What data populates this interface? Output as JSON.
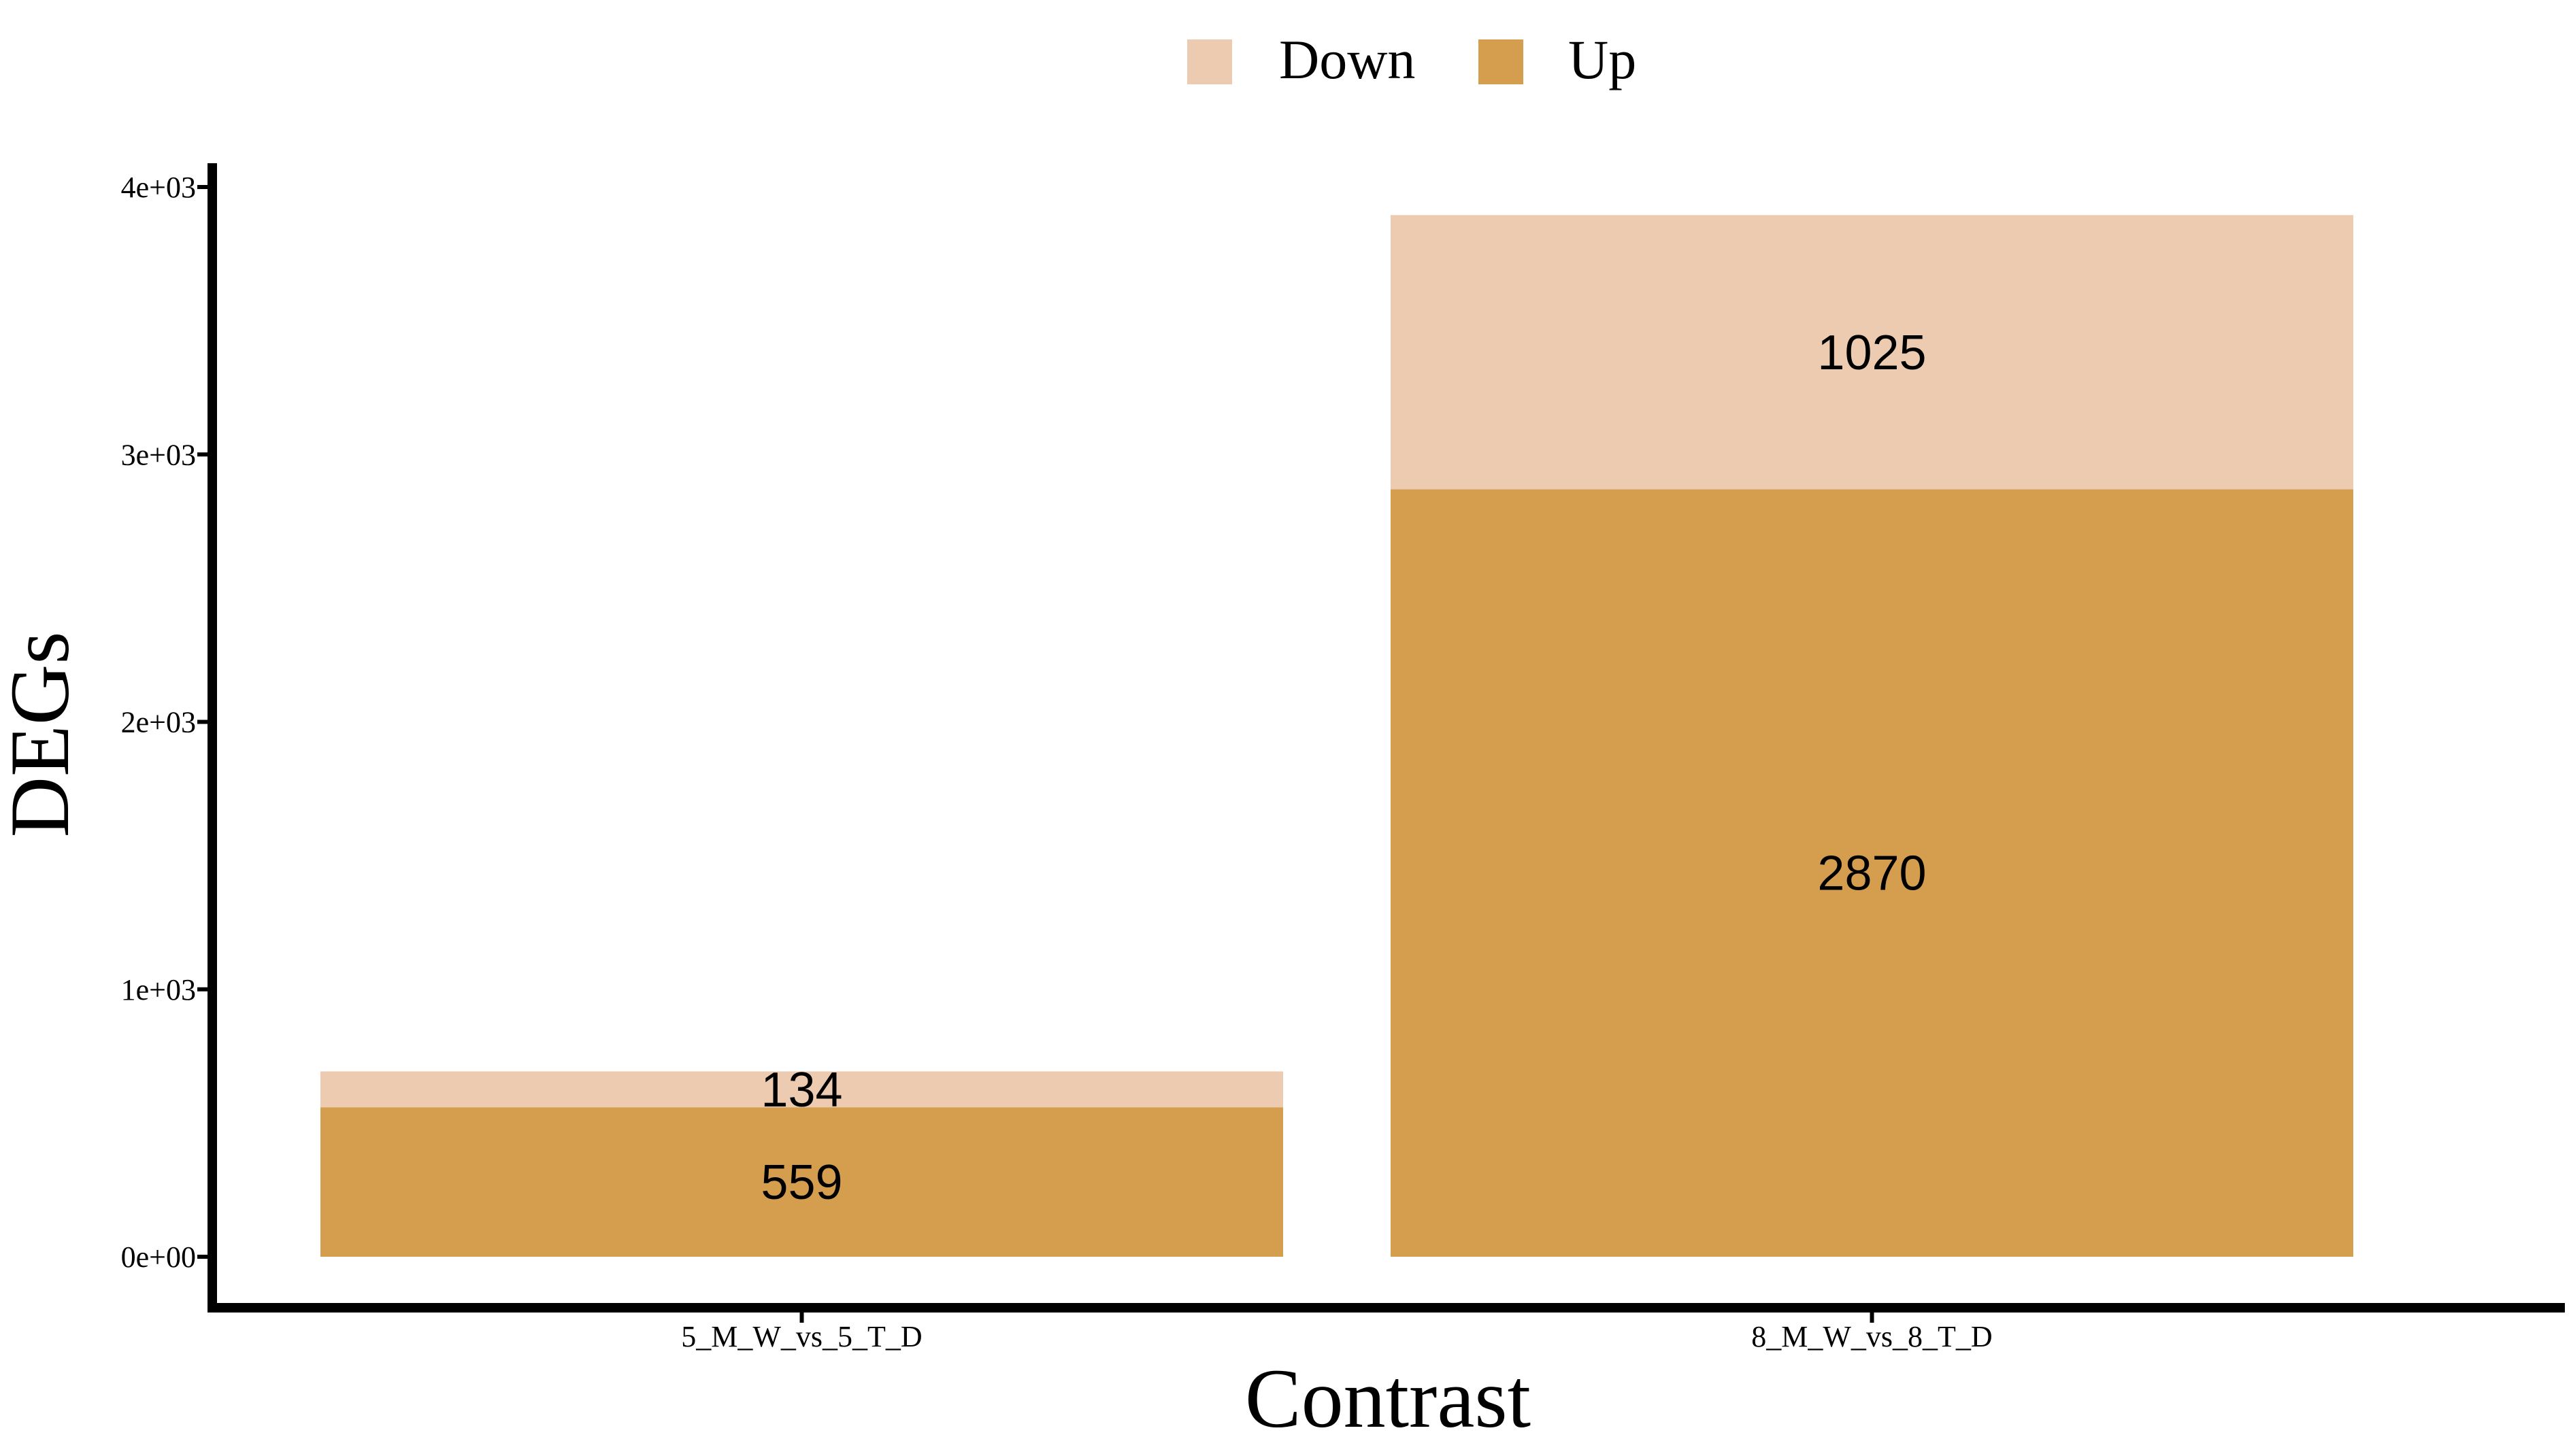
{
  "chart_data": {
    "type": "bar",
    "stacked": true,
    "categories": [
      "5_M_W_vs_5_T_D",
      "8_M_W_vs_8_T_D"
    ],
    "series": [
      {
        "name": "Up",
        "values": [
          559,
          2870
        ],
        "color": "#d59d4e"
      },
      {
        "name": "Down",
        "values": [
          134,
          1025
        ],
        "color": "#edcbb0"
      }
    ],
    "xlabel": "Contrast",
    "ylabel": "DEGs",
    "ylim": [
      0,
      4000
    ],
    "yticks": [
      0,
      1000,
      2000,
      3000,
      4000
    ],
    "ytick_labels": [
      "0e+00",
      "1e+03",
      "2e+03",
      "3e+03",
      "4e+03"
    ],
    "legend": {
      "position": "top",
      "entries": [
        "Down",
        "Up"
      ]
    },
    "grid": false
  }
}
